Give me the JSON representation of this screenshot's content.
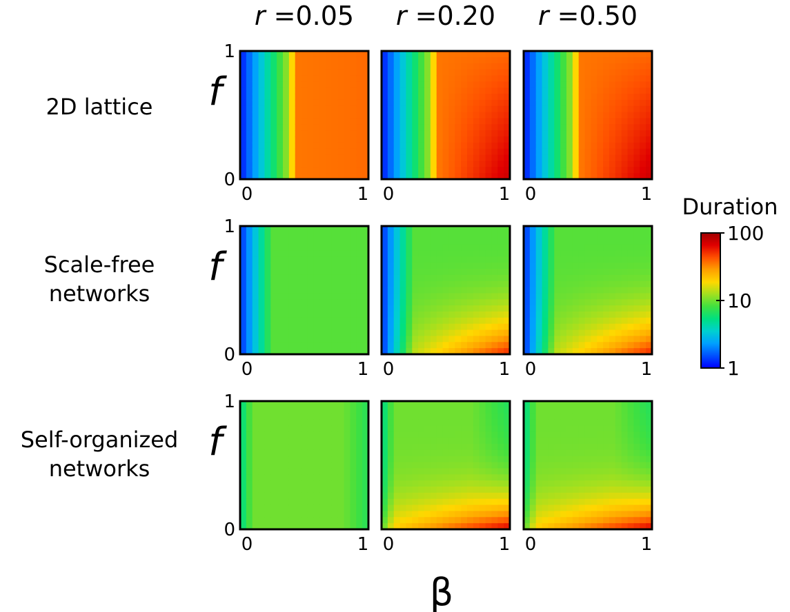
{
  "chart_data": {
    "type": "heatmap",
    "xlabel": "β",
    "ylabel": "f",
    "columns": [
      {
        "prefix": "r",
        "value_label": "=0.05"
      },
      {
        "prefix": "r",
        "value_label": "=0.20"
      },
      {
        "prefix": "r",
        "value_label": "=0.50"
      }
    ],
    "rows": [
      {
        "label_lines": [
          "2D lattice"
        ]
      },
      {
        "label_lines": [
          "Scale-free",
          "networks"
        ]
      },
      {
        "label_lines": [
          "Self-organized",
          "networks"
        ]
      }
    ],
    "x_ticks": [
      "0",
      "1"
    ],
    "y_ticks": [
      "0",
      "1"
    ],
    "xlim": [
      0,
      1
    ],
    "ylim": [
      0,
      1
    ],
    "colorbar": {
      "title": "Duration",
      "scale": "log",
      "range": [
        1,
        100
      ],
      "ticks": [
        "100",
        "10",
        "1"
      ],
      "tick_values": [
        100,
        10,
        1
      ],
      "colormap": [
        "#0000ff",
        "#0050ff",
        "#00a0ff",
        "#00d0d0",
        "#00e080",
        "#40e040",
        "#a0e020",
        "#ffd800",
        "#ffa000",
        "#ff5000",
        "#e00000",
        "#a00000"
      ]
    },
    "grid_resolution": 21
  }
}
